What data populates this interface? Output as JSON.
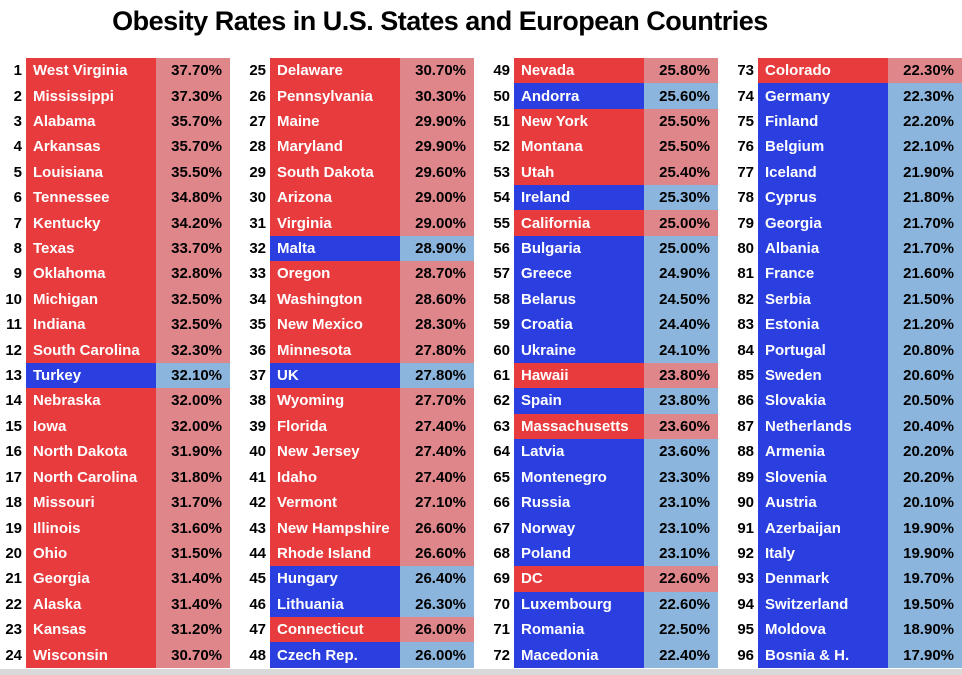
{
  "title": "Obesity Rates in U.S. States and European Countries",
  "colors": {
    "us_fill": "#E83B3E",
    "us_value_fill": "#DF868B",
    "europe_fill": "#2B3FE1",
    "europe_value_fill": "#8BB5DC",
    "rank_text": "#000000",
    "name_text": "#FFFFFF",
    "value_text": "#000000",
    "bottom_bar": "#D9D9D9"
  },
  "chart_data": {
    "type": "table",
    "title": "Obesity Rates in U.S. States and European Countries",
    "layout": {
      "columns": 4,
      "rows_per_column": 24
    },
    "color_coding": {
      "red": "U.S. state / district",
      "blue": "European country"
    },
    "entries": [
      {
        "rank": 1,
        "name": "West Virginia",
        "value": "37.70%",
        "region": "us"
      },
      {
        "rank": 2,
        "name": "Mississippi",
        "value": "37.30%",
        "region": "us"
      },
      {
        "rank": 3,
        "name": "Alabama",
        "value": "35.70%",
        "region": "us"
      },
      {
        "rank": 4,
        "name": "Arkansas",
        "value": "35.70%",
        "region": "us"
      },
      {
        "rank": 5,
        "name": "Louisiana",
        "value": "35.50%",
        "region": "us"
      },
      {
        "rank": 6,
        "name": "Tennessee",
        "value": "34.80%",
        "region": "us"
      },
      {
        "rank": 7,
        "name": "Kentucky",
        "value": "34.20%",
        "region": "us"
      },
      {
        "rank": 8,
        "name": "Texas",
        "value": "33.70%",
        "region": "us"
      },
      {
        "rank": 9,
        "name": "Oklahoma",
        "value": "32.80%",
        "region": "us"
      },
      {
        "rank": 10,
        "name": "Michigan",
        "value": "32.50%",
        "region": "us"
      },
      {
        "rank": 11,
        "name": "Indiana",
        "value": "32.50%",
        "region": "us"
      },
      {
        "rank": 12,
        "name": "South Carolina",
        "value": "32.30%",
        "region": "us"
      },
      {
        "rank": 13,
        "name": "Turkey",
        "value": "32.10%",
        "region": "europe"
      },
      {
        "rank": 14,
        "name": "Nebraska",
        "value": "32.00%",
        "region": "us"
      },
      {
        "rank": 15,
        "name": "Iowa",
        "value": "32.00%",
        "region": "us"
      },
      {
        "rank": 16,
        "name": "North Dakota",
        "value": "31.90%",
        "region": "us"
      },
      {
        "rank": 17,
        "name": "North Carolina",
        "value": "31.80%",
        "region": "us"
      },
      {
        "rank": 18,
        "name": "Missouri",
        "value": "31.70%",
        "region": "us"
      },
      {
        "rank": 19,
        "name": "Illinois",
        "value": "31.60%",
        "region": "us"
      },
      {
        "rank": 20,
        "name": "Ohio",
        "value": "31.50%",
        "region": "us"
      },
      {
        "rank": 21,
        "name": "Georgia",
        "value": "31.40%",
        "region": "us"
      },
      {
        "rank": 22,
        "name": "Alaska",
        "value": "31.40%",
        "region": "us"
      },
      {
        "rank": 23,
        "name": "Kansas",
        "value": "31.20%",
        "region": "us"
      },
      {
        "rank": 24,
        "name": "Wisconsin",
        "value": "30.70%",
        "region": "us"
      },
      {
        "rank": 25,
        "name": "Delaware",
        "value": "30.70%",
        "region": "us"
      },
      {
        "rank": 26,
        "name": "Pennsylvania",
        "value": "30.30%",
        "region": "us"
      },
      {
        "rank": 27,
        "name": "Maine",
        "value": "29.90%",
        "region": "us"
      },
      {
        "rank": 28,
        "name": "Maryland",
        "value": "29.90%",
        "region": "us"
      },
      {
        "rank": 29,
        "name": "South Dakota",
        "value": "29.60%",
        "region": "us"
      },
      {
        "rank": 30,
        "name": "Arizona",
        "value": "29.00%",
        "region": "us"
      },
      {
        "rank": 31,
        "name": "Virginia",
        "value": "29.00%",
        "region": "us"
      },
      {
        "rank": 32,
        "name": "Malta",
        "value": "28.90%",
        "region": "europe"
      },
      {
        "rank": 33,
        "name": "Oregon",
        "value": "28.70%",
        "region": "us"
      },
      {
        "rank": 34,
        "name": "Washington",
        "value": "28.60%",
        "region": "us"
      },
      {
        "rank": 35,
        "name": "New Mexico",
        "value": "28.30%",
        "region": "us"
      },
      {
        "rank": 36,
        "name": "Minnesota",
        "value": "27.80%",
        "region": "us"
      },
      {
        "rank": 37,
        "name": "UK",
        "value": "27.80%",
        "region": "europe"
      },
      {
        "rank": 38,
        "name": "Wyoming",
        "value": "27.70%",
        "region": "us"
      },
      {
        "rank": 39,
        "name": "Florida",
        "value": "27.40%",
        "region": "us"
      },
      {
        "rank": 40,
        "name": "New Jersey",
        "value": "27.40%",
        "region": "us"
      },
      {
        "rank": 41,
        "name": "Idaho",
        "value": "27.40%",
        "region": "us"
      },
      {
        "rank": 42,
        "name": "Vermont",
        "value": "27.10%",
        "region": "us"
      },
      {
        "rank": 43,
        "name": "New Hampshire",
        "value": "26.60%",
        "region": "us"
      },
      {
        "rank": 44,
        "name": "Rhode Island",
        "value": "26.60%",
        "region": "us"
      },
      {
        "rank": 45,
        "name": "Hungary",
        "value": "26.40%",
        "region": "europe"
      },
      {
        "rank": 46,
        "name": "Lithuania",
        "value": "26.30%",
        "region": "europe"
      },
      {
        "rank": 47,
        "name": "Connecticut",
        "value": "26.00%",
        "region": "us"
      },
      {
        "rank": 48,
        "name": "Czech Rep.",
        "value": "26.00%",
        "region": "europe"
      },
      {
        "rank": 49,
        "name": "Nevada",
        "value": "25.80%",
        "region": "us"
      },
      {
        "rank": 50,
        "name": "Andorra",
        "value": "25.60%",
        "region": "europe"
      },
      {
        "rank": 51,
        "name": "New York",
        "value": "25.50%",
        "region": "us"
      },
      {
        "rank": 52,
        "name": "Montana",
        "value": "25.50%",
        "region": "us"
      },
      {
        "rank": 53,
        "name": "Utah",
        "value": "25.40%",
        "region": "us"
      },
      {
        "rank": 54,
        "name": "Ireland",
        "value": "25.30%",
        "region": "europe"
      },
      {
        "rank": 55,
        "name": "California",
        "value": "25.00%",
        "region": "us"
      },
      {
        "rank": 56,
        "name": "Bulgaria",
        "value": "25.00%",
        "region": "europe"
      },
      {
        "rank": 57,
        "name": "Greece",
        "value": "24.90%",
        "region": "europe"
      },
      {
        "rank": 58,
        "name": "Belarus",
        "value": "24.50%",
        "region": "europe"
      },
      {
        "rank": 59,
        "name": "Croatia",
        "value": "24.40%",
        "region": "europe"
      },
      {
        "rank": 60,
        "name": "Ukraine",
        "value": "24.10%",
        "region": "europe"
      },
      {
        "rank": 61,
        "name": "Hawaii",
        "value": "23.80%",
        "region": "us"
      },
      {
        "rank": 62,
        "name": "Spain",
        "value": "23.80%",
        "region": "europe"
      },
      {
        "rank": 63,
        "name": "Massachusetts",
        "value": "23.60%",
        "region": "us"
      },
      {
        "rank": 64,
        "name": "Latvia",
        "value": "23.60%",
        "region": "europe"
      },
      {
        "rank": 65,
        "name": "Montenegro",
        "value": "23.30%",
        "region": "europe"
      },
      {
        "rank": 66,
        "name": "Russia",
        "value": "23.10%",
        "region": "europe"
      },
      {
        "rank": 67,
        "name": "Norway",
        "value": "23.10%",
        "region": "europe"
      },
      {
        "rank": 68,
        "name": "Poland",
        "value": "23.10%",
        "region": "europe"
      },
      {
        "rank": 69,
        "name": "DC",
        "value": "22.60%",
        "region": "us"
      },
      {
        "rank": 70,
        "name": "Luxembourg",
        "value": "22.60%",
        "region": "europe"
      },
      {
        "rank": 71,
        "name": "Romania",
        "value": "22.50%",
        "region": "europe"
      },
      {
        "rank": 72,
        "name": "Macedonia",
        "value": "22.40%",
        "region": "europe"
      },
      {
        "rank": 73,
        "name": "Colorado",
        "value": "22.30%",
        "region": "us"
      },
      {
        "rank": 74,
        "name": "Germany",
        "value": "22.30%",
        "region": "europe"
      },
      {
        "rank": 75,
        "name": "Finland",
        "value": "22.20%",
        "region": "europe"
      },
      {
        "rank": 76,
        "name": "Belgium",
        "value": "22.10%",
        "region": "europe"
      },
      {
        "rank": 77,
        "name": "Iceland",
        "value": "21.90%",
        "region": "europe"
      },
      {
        "rank": 78,
        "name": "Cyprus",
        "value": "21.80%",
        "region": "europe"
      },
      {
        "rank": 79,
        "name": "Georgia",
        "value": "21.70%",
        "region": "europe"
      },
      {
        "rank": 80,
        "name": "Albania",
        "value": "21.70%",
        "region": "europe"
      },
      {
        "rank": 81,
        "name": "France",
        "value": "21.60%",
        "region": "europe"
      },
      {
        "rank": 82,
        "name": "Serbia",
        "value": "21.50%",
        "region": "europe"
      },
      {
        "rank": 83,
        "name": "Estonia",
        "value": "21.20%",
        "region": "europe"
      },
      {
        "rank": 84,
        "name": "Portugal",
        "value": "20.80%",
        "region": "europe"
      },
      {
        "rank": 85,
        "name": "Sweden",
        "value": "20.60%",
        "region": "europe"
      },
      {
        "rank": 86,
        "name": "Slovakia",
        "value": "20.50%",
        "region": "europe"
      },
      {
        "rank": 87,
        "name": "Netherlands",
        "value": "20.40%",
        "region": "europe"
      },
      {
        "rank": 88,
        "name": "Armenia",
        "value": "20.20%",
        "region": "europe"
      },
      {
        "rank": 89,
        "name": "Slovenia",
        "value": "20.20%",
        "region": "europe"
      },
      {
        "rank": 90,
        "name": "Austria",
        "value": "20.10%",
        "region": "europe"
      },
      {
        "rank": 91,
        "name": "Azerbaijan",
        "value": "19.90%",
        "region": "europe"
      },
      {
        "rank": 92,
        "name": "Italy",
        "value": "19.90%",
        "region": "europe"
      },
      {
        "rank": 93,
        "name": "Denmark",
        "value": "19.70%",
        "region": "europe"
      },
      {
        "rank": 94,
        "name": "Switzerland",
        "value": "19.50%",
        "region": "europe"
      },
      {
        "rank": 95,
        "name": "Moldova",
        "value": "18.90%",
        "region": "europe"
      },
      {
        "rank": 96,
        "name": "Bosnia & H.",
        "value": "17.90%",
        "region": "europe"
      }
    ]
  }
}
